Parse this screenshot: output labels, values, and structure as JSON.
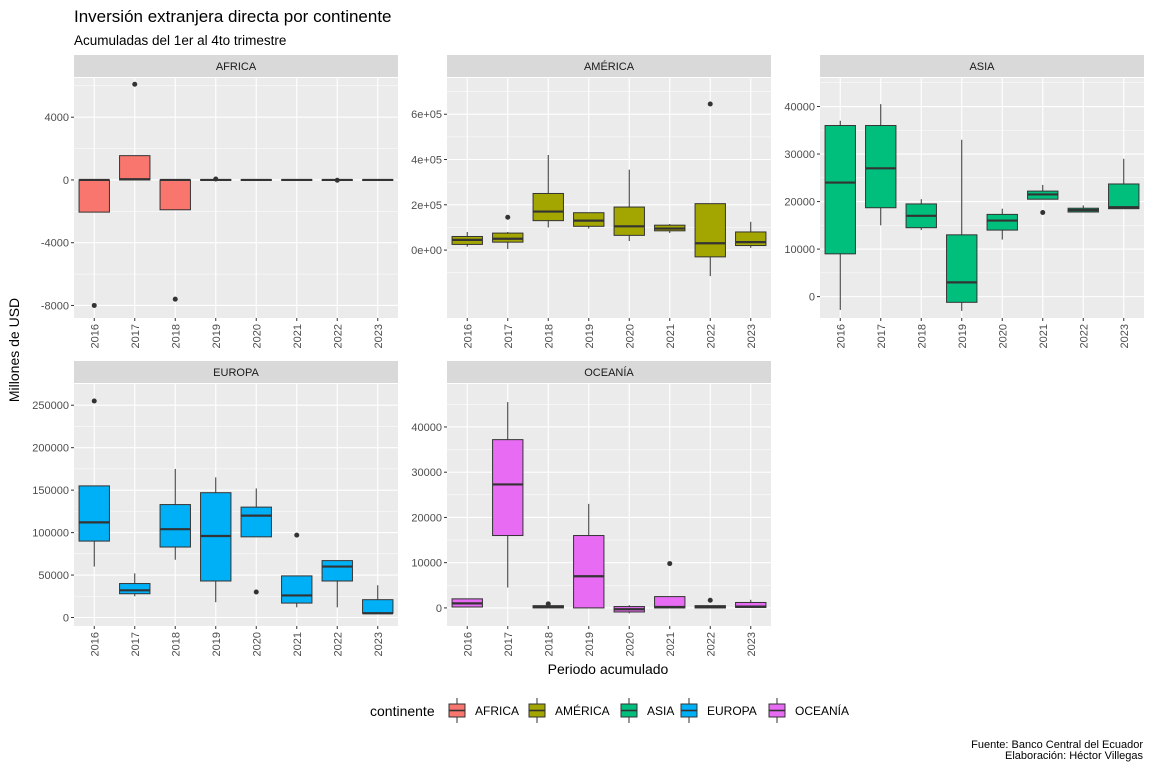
{
  "chart_data": {
    "type": "boxplot",
    "title": "Inversión extranjera directa por continente",
    "subtitle": "Acumuladas del 1er al 4to trimestre",
    "xlabel": "Periodo acumulado",
    "ylabel": "Millones de USD",
    "caption_line1": "Fuente: Banco Central del Ecuador",
    "caption_line2": "Elaboración: Héctor Villegas",
    "legend": {
      "title": "continente",
      "position": "bottom",
      "entries": [
        {
          "name": "AFRICA",
          "color": "#F8766D"
        },
        {
          "name": "AMÉRICA",
          "color": "#A3A500"
        },
        {
          "name": "ASIA",
          "color": "#00BF7D"
        },
        {
          "name": "EUROPA",
          "color": "#00B0F6"
        },
        {
          "name": "OCEANÍA",
          "color": "#E76BF3"
        }
      ]
    },
    "categories": [
      "2016",
      "2017",
      "2018",
      "2019",
      "2020",
      "2021",
      "2022",
      "2023"
    ],
    "grid": true,
    "facets": [
      {
        "name": "AFRICA",
        "color": "#F8766D",
        "ylim": [
          -8800,
          6500
        ],
        "yticks": [
          -8000,
          -4000,
          0,
          4000
        ],
        "ytick_labels": [
          "-8000",
          "-4000",
          "0",
          "4000"
        ],
        "boxes": [
          {
            "x": "2016",
            "q1": -2050,
            "median": 0,
            "q3": 0,
            "lower": -2050,
            "upper": 0,
            "outliers": [
              -8000
            ]
          },
          {
            "x": "2017",
            "q1": 0,
            "median": 50,
            "q3": 1550,
            "lower": 0,
            "upper": 1550,
            "outliers": [
              6100
            ]
          },
          {
            "x": "2018",
            "q1": -1900,
            "median": 0,
            "q3": 0,
            "lower": -1900,
            "upper": 0,
            "outliers": [
              -7600
            ]
          },
          {
            "x": "2019",
            "q1": -20,
            "median": 0,
            "q3": 20,
            "lower": -60,
            "upper": 60,
            "outliers": [
              60
            ]
          },
          {
            "x": "2020",
            "q1": -10,
            "median": 0,
            "q3": 10,
            "lower": -30,
            "upper": 30,
            "outliers": []
          },
          {
            "x": "2021",
            "q1": -10,
            "median": 0,
            "q3": 10,
            "lower": -30,
            "upper": 30,
            "outliers": []
          },
          {
            "x": "2022",
            "q1": -10,
            "median": 0,
            "q3": 10,
            "lower": -30,
            "upper": 30,
            "outliers": [
              -20
            ]
          },
          {
            "x": "2023",
            "q1": -10,
            "median": 0,
            "q3": 10,
            "lower": -30,
            "upper": 30,
            "outliers": []
          }
        ]
      },
      {
        "name": "AMÉRICA",
        "color": "#A3A500",
        "ylim": [
          -300000,
          760000
        ],
        "yticks": [
          0,
          200000,
          400000,
          600000
        ],
        "ytick_labels": [
          "0e+00",
          "2e+05",
          "4e+05",
          "6e+05"
        ],
        "boxes": [
          {
            "x": "2016",
            "q1": 25000,
            "median": 45000,
            "q3": 60000,
            "lower": 15000,
            "upper": 80000,
            "outliers": []
          },
          {
            "x": "2017",
            "q1": 35000,
            "median": 50000,
            "q3": 75000,
            "lower": 5000,
            "upper": 80000,
            "outliers": [
              145000
            ]
          },
          {
            "x": "2018",
            "q1": 130000,
            "median": 170000,
            "q3": 250000,
            "lower": 100000,
            "upper": 420000,
            "outliers": []
          },
          {
            "x": "2019",
            "q1": 105000,
            "median": 130000,
            "q3": 165000,
            "lower": 95000,
            "upper": 165000,
            "outliers": []
          },
          {
            "x": "2020",
            "q1": 65000,
            "median": 105000,
            "q3": 190000,
            "lower": 40000,
            "upper": 355000,
            "outliers": []
          },
          {
            "x": "2021",
            "q1": 85000,
            "median": 95000,
            "q3": 110000,
            "lower": 75000,
            "upper": 115000,
            "outliers": []
          },
          {
            "x": "2022",
            "q1": -30000,
            "median": 30000,
            "q3": 205000,
            "lower": -115000,
            "upper": 205000,
            "outliers": [
              645000
            ]
          },
          {
            "x": "2023",
            "q1": 20000,
            "median": 35000,
            "q3": 80000,
            "lower": 10000,
            "upper": 125000,
            "outliers": []
          }
        ]
      },
      {
        "name": "ASIA",
        "color": "#00BF7D",
        "ylim": [
          -4500,
          46000
        ],
        "yticks": [
          0,
          10000,
          20000,
          30000,
          40000
        ],
        "ytick_labels": [
          "0",
          "10000",
          "20000",
          "30000",
          "40000"
        ],
        "boxes": [
          {
            "x": "2016",
            "q1": 9000,
            "median": 24000,
            "q3": 36000,
            "lower": -2800,
            "upper": 37000,
            "outliers": []
          },
          {
            "x": "2017",
            "q1": 18700,
            "median": 27000,
            "q3": 36000,
            "lower": 15000,
            "upper": 40500,
            "outliers": []
          },
          {
            "x": "2018",
            "q1": 14500,
            "median": 17000,
            "q3": 19500,
            "lower": 14000,
            "upper": 20500,
            "outliers": []
          },
          {
            "x": "2019",
            "q1": -1200,
            "median": 3000,
            "q3": 13000,
            "lower": -3000,
            "upper": 33000,
            "outliers": []
          },
          {
            "x": "2020",
            "q1": 14000,
            "median": 16000,
            "q3": 17300,
            "lower": 12000,
            "upper": 18500,
            "outliers": []
          },
          {
            "x": "2021",
            "q1": 20500,
            "median": 21500,
            "q3": 22200,
            "lower": 20500,
            "upper": 23500,
            "outliers": [
              17700
            ]
          },
          {
            "x": "2022",
            "q1": 17800,
            "median": 18200,
            "q3": 18600,
            "lower": 17800,
            "upper": 19200,
            "outliers": []
          },
          {
            "x": "2023",
            "q1": 18500,
            "median": 18800,
            "q3": 23700,
            "lower": 18500,
            "upper": 29000,
            "outliers": []
          }
        ]
      },
      {
        "name": "EUROPA",
        "color": "#00B0F6",
        "ylim": [
          -10000,
          275000
        ],
        "yticks": [
          0,
          50000,
          100000,
          150000,
          200000,
          250000
        ],
        "ytick_labels": [
          "0",
          "50000",
          "100000",
          "150000",
          "200000",
          "250000"
        ],
        "boxes": [
          {
            "x": "2016",
            "q1": 90000,
            "median": 112000,
            "q3": 155000,
            "lower": 60000,
            "upper": 155000,
            "outliers": [
              255000
            ]
          },
          {
            "x": "2017",
            "q1": 28000,
            "median": 32000,
            "q3": 40000,
            "lower": 25000,
            "upper": 52000,
            "outliers": []
          },
          {
            "x": "2018",
            "q1": 83000,
            "median": 104000,
            "q3": 133000,
            "lower": 68000,
            "upper": 175000,
            "outliers": []
          },
          {
            "x": "2019",
            "q1": 43000,
            "median": 96000,
            "q3": 147000,
            "lower": 18000,
            "upper": 165000,
            "outliers": []
          },
          {
            "x": "2020",
            "q1": 95000,
            "median": 120000,
            "q3": 130000,
            "lower": 95000,
            "upper": 152000,
            "outliers": [
              30000
            ]
          },
          {
            "x": "2021",
            "q1": 17000,
            "median": 26000,
            "q3": 49000,
            "lower": 12000,
            "upper": 49000,
            "outliers": [
              97000
            ]
          },
          {
            "x": "2022",
            "q1": 43000,
            "median": 60000,
            "q3": 67000,
            "lower": 12000,
            "upper": 67000,
            "outliers": []
          },
          {
            "x": "2023",
            "q1": 5000,
            "median": 5000,
            "q3": 21000,
            "lower": 5000,
            "upper": 38000,
            "outliers": []
          }
        ]
      },
      {
        "name": "OCEANÍA",
        "color": "#E76BF3",
        "ylim": [
          -4000,
          49500
        ],
        "yticks": [
          0,
          10000,
          20000,
          30000,
          40000
        ],
        "ytick_labels": [
          "0",
          "10000",
          "20000",
          "30000",
          "40000"
        ],
        "boxes": [
          {
            "x": "2016",
            "q1": 200,
            "median": 1000,
            "q3": 2000,
            "lower": 200,
            "upper": 2000,
            "outliers": []
          },
          {
            "x": "2017",
            "q1": 16000,
            "median": 27300,
            "q3": 37200,
            "lower": 4500,
            "upper": 45500,
            "outliers": []
          },
          {
            "x": "2018",
            "q1": 0,
            "median": 300,
            "q3": 500,
            "lower": 0,
            "upper": 500,
            "outliers": [
              900
            ]
          },
          {
            "x": "2019",
            "q1": 0,
            "median": 7000,
            "q3": 16000,
            "lower": 0,
            "upper": 23000,
            "outliers": []
          },
          {
            "x": "2020",
            "q1": -900,
            "median": -300,
            "q3": 300,
            "lower": -1200,
            "upper": 600,
            "outliers": []
          },
          {
            "x": "2021",
            "q1": 0,
            "median": 200,
            "q3": 2500,
            "lower": 0,
            "upper": 2500,
            "outliers": [
              9800
            ]
          },
          {
            "x": "2022",
            "q1": 0,
            "median": 200,
            "q3": 500,
            "lower": 0,
            "upper": 500,
            "outliers": [
              1700
            ]
          },
          {
            "x": "2023",
            "q1": 100,
            "median": 300,
            "q3": 1200,
            "lower": 100,
            "upper": 1800,
            "outliers": []
          }
        ]
      }
    ]
  }
}
